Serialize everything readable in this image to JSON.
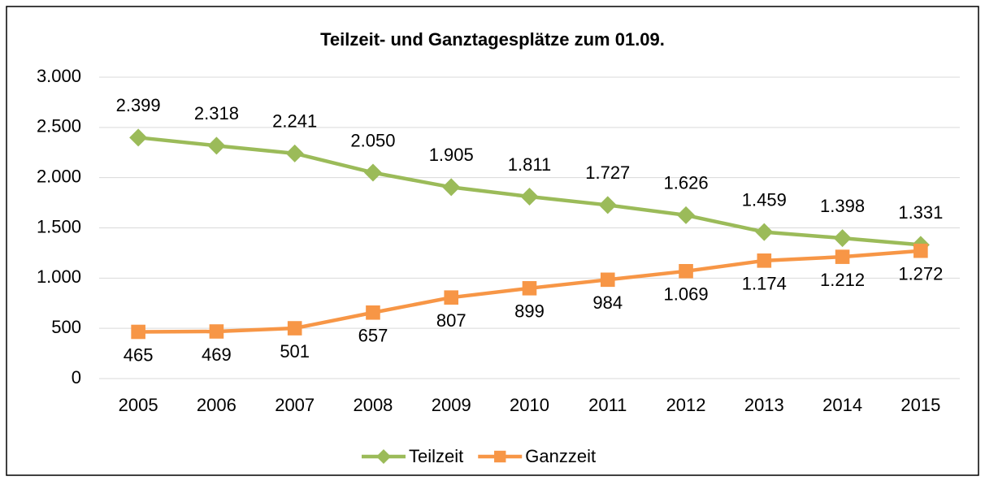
{
  "chart_data": {
    "type": "line",
    "title": "Teilzeit- und Ganztagesplätze zum 01.09.",
    "categories": [
      "2005",
      "2006",
      "2007",
      "2008",
      "2009",
      "2010",
      "2011",
      "2012",
      "2013",
      "2014",
      "2015"
    ],
    "series": [
      {
        "name": "Teilzeit",
        "color": "#9bbb59",
        "marker": "diamond",
        "values": [
          2399,
          2318,
          2241,
          2050,
          1905,
          1811,
          1727,
          1626,
          1459,
          1398,
          1331
        ],
        "value_labels": [
          "2.399",
          "2.318",
          "2.241",
          "2.050",
          "1.905",
          "1.811",
          "1.727",
          "1.626",
          "1.459",
          "1.398",
          "1.331"
        ]
      },
      {
        "name": "Ganzzeit",
        "color": "#f79646",
        "marker": "square",
        "values": [
          465,
          469,
          501,
          657,
          807,
          899,
          984,
          1069,
          1174,
          1212,
          1272
        ],
        "value_labels": [
          "465",
          "469",
          "501",
          "657",
          "807",
          "899",
          "984",
          "1.069",
          "1.174",
          "1.212",
          "1.272"
        ]
      }
    ],
    "ylim": [
      0,
      3000
    ],
    "yticks": [
      0,
      500,
      {
        "value": 1000,
        "label": "1.000"
      },
      {
        "value": 1500,
        "label": "1.500"
      },
      {
        "value": 2000,
        "label": "2.000"
      },
      {
        "value": 2500,
        "label": "2.500"
      },
      {
        "value": 3000,
        "label": "3.000"
      }
    ],
    "grid": true,
    "legend": "bottom"
  }
}
